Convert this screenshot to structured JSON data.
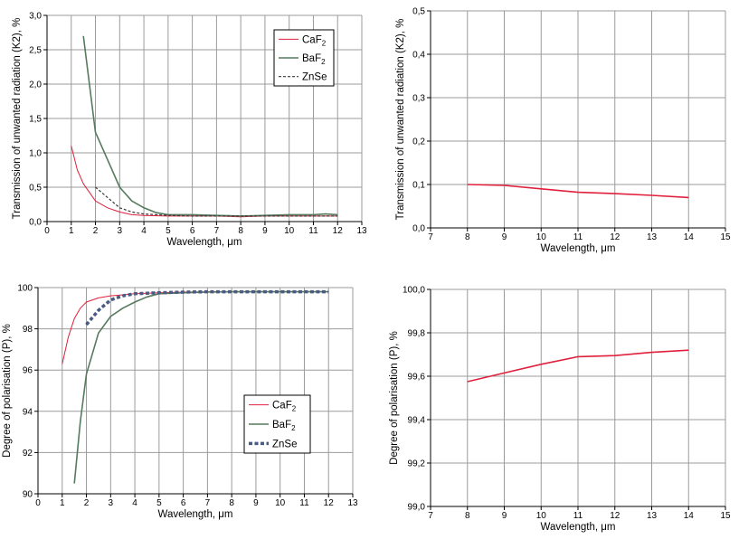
{
  "charts": [
    {
      "id": "tl",
      "chart_data": {
        "type": "line",
        "xlabel": "Wavelength, μm",
        "ylabel": "Transmission of unwanted radiation (K2), %",
        "xlim": [
          0,
          13
        ],
        "ylim": [
          0,
          3.0
        ],
        "xticks": [
          "0",
          "1",
          "2",
          "3",
          "4",
          "5",
          "6",
          "7",
          "8",
          "9",
          "10",
          "11",
          "12",
          "13"
        ],
        "yticks": [
          "0,0",
          "0,5",
          "1,0",
          "1,5",
          "2,0",
          "2,5",
          "3,0"
        ],
        "grid": true,
        "legend_position": "top-right",
        "series": [
          {
            "name": "CaF",
            "name_sub": "2",
            "color": "#e0203c",
            "dash": "",
            "width": 1,
            "x": [
              1,
              1.25,
              1.5,
              2,
              2.5,
              3,
              3.5,
              4,
              5,
              6,
              7,
              8,
              9,
              10,
              11,
              12
            ],
            "y": [
              1.1,
              0.75,
              0.55,
              0.3,
              0.2,
              0.14,
              0.1,
              0.09,
              0.08,
              0.08,
              0.08,
              0.07,
              0.08,
              0.08,
              0.08,
              0.08
            ]
          },
          {
            "name": "BaF",
            "name_sub": "2",
            "color": "#557a5d",
            "dash": "",
            "width": 1.6,
            "x": [
              1.5,
              2,
              2.5,
              3,
              3.5,
              4,
              4.5,
              5,
              6,
              7,
              8,
              9,
              10,
              11,
              11.5,
              12
            ],
            "y": [
              2.7,
              1.3,
              0.9,
              0.5,
              0.3,
              0.2,
              0.13,
              0.1,
              0.1,
              0.09,
              0.08,
              0.09,
              0.1,
              0.1,
              0.11,
              0.1
            ]
          },
          {
            "name": "ZnSe",
            "name_sub": "",
            "color": "#3a3a3a",
            "dash": "3,2",
            "width": 1.2,
            "x": [
              2,
              2.5,
              3,
              3.5,
              4,
              5,
              6,
              7,
              8,
              9,
              10,
              11,
              12
            ],
            "y": [
              0.5,
              0.35,
              0.2,
              0.14,
              0.11,
              0.09,
              0.08,
              0.08,
              0.08,
              0.08,
              0.08,
              0.08,
              0.08
            ]
          }
        ]
      }
    },
    {
      "id": "tr",
      "chart_data": {
        "type": "line",
        "xlabel": "Wavelength, μm",
        "ylabel": "Transmission of unwanted radiation (K2), %",
        "xlim": [
          7,
          15
        ],
        "ylim": [
          0,
          0.5
        ],
        "xticks": [
          "7",
          "8",
          "9",
          "10",
          "11",
          "12",
          "13",
          "14",
          "15"
        ],
        "yticks": [
          "0,0",
          "0,1",
          "0,2",
          "0,3",
          "0,4",
          "0,5"
        ],
        "grid": true,
        "series": [
          {
            "name": "",
            "color": "#e0203c",
            "dash": "",
            "width": 1.6,
            "x": [
              8,
              9,
              10,
              11,
              12,
              13,
              14
            ],
            "y": [
              0.1,
              0.098,
              0.09,
              0.082,
              0.079,
              0.075,
              0.07
            ]
          }
        ]
      }
    },
    {
      "id": "bl",
      "chart_data": {
        "type": "line",
        "xlabel": "Wavelength, μm",
        "ylabel": "Degree of polarisation (P), %",
        "xlim": [
          0,
          13
        ],
        "ylim": [
          90,
          100
        ],
        "xticks": [
          "0",
          "1",
          "2",
          "3",
          "4",
          "5",
          "6",
          "7",
          "8",
          "9",
          "10",
          "11",
          "12",
          "13"
        ],
        "yticks": [
          "90",
          "92",
          "94",
          "96",
          "98",
          "100"
        ],
        "grid": true,
        "legend_position": "bottom-right",
        "series": [
          {
            "name": "CaF",
            "name_sub": "2",
            "color": "#e0203c",
            "dash": "",
            "width": 1,
            "x": [
              1,
              1.25,
              1.5,
              1.75,
              2,
              2.5,
              3,
              3.5,
              4,
              5,
              6,
              7,
              8,
              9,
              10,
              11,
              12
            ],
            "y": [
              96.3,
              97.6,
              98.5,
              99.0,
              99.3,
              99.5,
              99.6,
              99.65,
              99.7,
              99.75,
              99.78,
              99.8,
              99.8,
              99.8,
              99.8,
              99.8,
              99.8
            ]
          },
          {
            "name": "BaF",
            "name_sub": "2",
            "color": "#557a5d",
            "dash": "",
            "width": 1.6,
            "x": [
              1.5,
              1.75,
              2,
              2.5,
              3,
              3.5,
              4,
              4.5,
              5,
              6,
              7,
              8,
              9,
              10,
              11,
              12
            ],
            "y": [
              90.5,
              93.5,
              95.8,
              97.8,
              98.6,
              99.0,
              99.3,
              99.55,
              99.7,
              99.75,
              99.78,
              99.8,
              99.8,
              99.8,
              99.8,
              99.8
            ]
          },
          {
            "name": "ZnSe",
            "name_sub": "",
            "color": "#4a5b82",
            "dash": "4,2.5",
            "width": 3.5,
            "x": [
              2,
              2.5,
              3,
              3.5,
              4,
              5,
              6,
              7,
              8,
              9,
              10,
              11,
              12
            ],
            "y": [
              98.2,
              98.9,
              99.4,
              99.6,
              99.7,
              99.75,
              99.78,
              99.8,
              99.8,
              99.8,
              99.8,
              99.8,
              99.8
            ]
          }
        ]
      }
    },
    {
      "id": "br",
      "chart_data": {
        "type": "line",
        "xlabel": "Wavelength, μm",
        "ylabel": "Degree of polarisation (P), %",
        "xlim": [
          7,
          15
        ],
        "ylim": [
          99.0,
          100.0
        ],
        "xticks": [
          "7",
          "8",
          "9",
          "10",
          "11",
          "12",
          "13",
          "14",
          "15"
        ],
        "yticks": [
          "99,0",
          "99,2",
          "99,4",
          "99,6",
          "99,8",
          "100,0"
        ],
        "grid": true,
        "series": [
          {
            "name": "",
            "color": "#e0203c",
            "dash": "",
            "width": 1.6,
            "x": [
              8,
              9,
              10,
              11,
              12,
              13,
              14
            ],
            "y": [
              99.575,
              99.615,
              99.655,
              99.69,
              99.695,
              99.71,
              99.72
            ]
          }
        ]
      }
    }
  ]
}
